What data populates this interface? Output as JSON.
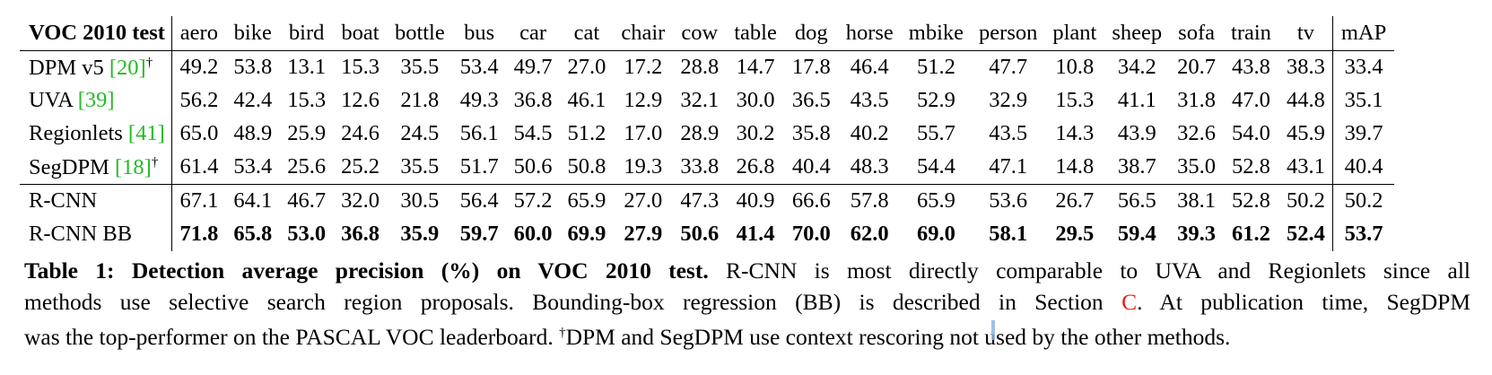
{
  "table": {
    "corner": "VOC 2010 test",
    "columns": [
      "aero",
      "bike",
      "bird",
      "boat",
      "bottle",
      "bus",
      "car",
      "cat",
      "chair",
      "cow",
      "table",
      "dog",
      "horse",
      "mbike",
      "person",
      "plant",
      "sheep",
      "sofa",
      "train",
      "tv"
    ],
    "map_header": "mAP",
    "rows": [
      {
        "method": "DPM v5 ",
        "ref": "[20]",
        "dagger": "†",
        "values": [
          "49.2",
          "53.8",
          "13.1",
          "15.3",
          "35.5",
          "53.4",
          "49.7",
          "27.0",
          "17.2",
          "28.8",
          "14.7",
          "17.8",
          "46.4",
          "51.2",
          "47.7",
          "10.8",
          "34.2",
          "20.7",
          "43.8",
          "38.3"
        ],
        "map": "33.4",
        "bold": false,
        "group_end": false
      },
      {
        "method": "UVA ",
        "ref": "[39]",
        "dagger": "",
        "values": [
          "56.2",
          "42.4",
          "15.3",
          "12.6",
          "21.8",
          "49.3",
          "36.8",
          "46.1",
          "12.9",
          "32.1",
          "30.0",
          "36.5",
          "43.5",
          "52.9",
          "32.9",
          "15.3",
          "41.1",
          "31.8",
          "47.0",
          "44.8"
        ],
        "map": "35.1",
        "bold": false,
        "group_end": false
      },
      {
        "method": "Regionlets ",
        "ref": "[41]",
        "dagger": "",
        "values": [
          "65.0",
          "48.9",
          "25.9",
          "24.6",
          "24.5",
          "56.1",
          "54.5",
          "51.2",
          "17.0",
          "28.9",
          "30.2",
          "35.8",
          "40.2",
          "55.7",
          "43.5",
          "14.3",
          "43.9",
          "32.6",
          "54.0",
          "45.9"
        ],
        "map": "39.7",
        "bold": false,
        "group_end": false
      },
      {
        "method": "SegDPM ",
        "ref": "[18]",
        "dagger": "†",
        "values": [
          "61.4",
          "53.4",
          "25.6",
          "25.2",
          "35.5",
          "51.7",
          "50.6",
          "50.8",
          "19.3",
          "33.8",
          "26.8",
          "40.4",
          "48.3",
          "54.4",
          "47.1",
          "14.8",
          "38.7",
          "35.0",
          "52.8",
          "43.1"
        ],
        "map": "40.4",
        "bold": false,
        "group_end": true
      },
      {
        "method": "R-CNN",
        "ref": "",
        "dagger": "",
        "values": [
          "67.1",
          "64.1",
          "46.7",
          "32.0",
          "30.5",
          "56.4",
          "57.2",
          "65.9",
          "27.0",
          "47.3",
          "40.9",
          "66.6",
          "57.8",
          "65.9",
          "53.6",
          "26.7",
          "56.5",
          "38.1",
          "52.8",
          "50.2"
        ],
        "map": "50.2",
        "bold": false,
        "group_end": false
      },
      {
        "method": "R-CNN BB",
        "ref": "",
        "dagger": "",
        "values": [
          "71.8",
          "65.8",
          "53.0",
          "36.8",
          "35.9",
          "59.7",
          "60.0",
          "69.9",
          "27.9",
          "50.6",
          "41.4",
          "70.0",
          "62.0",
          "69.0",
          "58.1",
          "29.5",
          "59.4",
          "39.3",
          "61.2",
          "52.4"
        ],
        "map": "53.7",
        "bold": true,
        "group_end": false
      }
    ]
  },
  "caption": {
    "lead": "Table 1: Detection average precision (%) on VOC 2010 test.",
    "line1_rest": " R-CNN is most directly comparable to UVA and Regionlets since all",
    "line2_pre": "methods use selective search region proposals. Bounding-box regression (BB) is described in Section ",
    "section_ref": "C",
    "line2_post": ". At publication time, SegDPM",
    "line3_pre": "was the top-performer on the PASCAL VOC leaderboard. ",
    "dagger": "†",
    "line3_post": "DPM and SegDPM use context rescoring not used by the other methods."
  }
}
